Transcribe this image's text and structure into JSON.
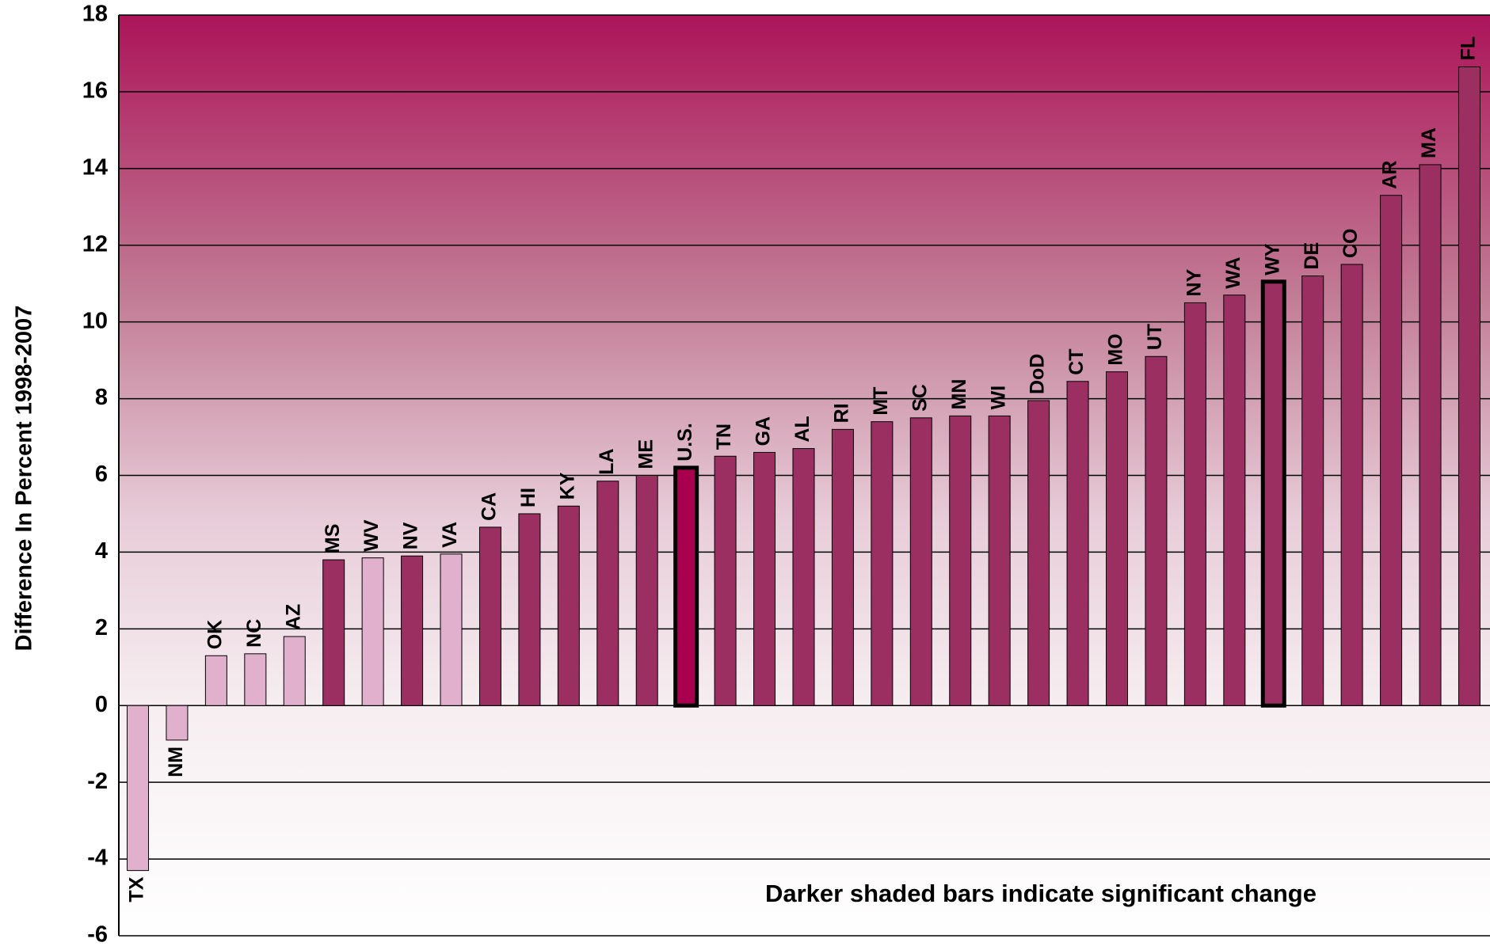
{
  "chart_data": {
    "type": "bar",
    "annotation": "Darker shaded bars indicate significant change",
    "y_label": "Difference In Percent 1998-2007",
    "categories": [
      "TX",
      "NM",
      "OK",
      "NC",
      "AZ",
      "MS",
      "WV",
      "NV",
      "VA",
      "CA",
      "HI",
      "KY",
      "LA",
      "ME",
      "U.S.",
      "TN",
      "GA",
      "AL",
      "RI",
      "MT",
      "SC",
      "MN",
      "WI",
      "DoD",
      "CT",
      "MO",
      "UT",
      "NY",
      "WA",
      "WY",
      "DE",
      "CO",
      "AR",
      "MA",
      "FL"
    ],
    "values": [
      -4.3,
      -0.9,
      1.3,
      1.35,
      1.8,
      3.8,
      3.85,
      3.9,
      3.95,
      4.65,
      5.0,
      5.2,
      5.85,
      6.0,
      6.2,
      6.5,
      6.6,
      6.7,
      7.2,
      7.4,
      7.5,
      7.55,
      7.55,
      7.95,
      8.45,
      8.7,
      9.1,
      10.5,
      10.7,
      11.05,
      11.2,
      11.5,
      13.3,
      14.1,
      16.65
    ],
    "bar_colors": [
      "#e0b0cc",
      "#e0b0cc",
      "#e0b0cc",
      "#e0b0cc",
      "#e0b0cc",
      "#9b2f62",
      "#e0b0cc",
      "#9b2f62",
      "#e0b0cc",
      "#9b2f62",
      "#9b2f62",
      "#9b2f62",
      "#9b2f62",
      "#9b2f62",
      "#a8004f",
      "#9b2f62",
      "#9b2f62",
      "#9b2f62",
      "#9b2f62",
      "#9b2f62",
      "#9b2f62",
      "#9b2f62",
      "#9b2f62",
      "#9b2f62",
      "#9b2f62",
      "#9b2f62",
      "#9b2f62",
      "#9b2f62",
      "#9b2f62",
      "#9b2f62",
      "#9b2f62",
      "#9b2f62",
      "#9b2f62",
      "#9b2f62",
      "#9b2f62"
    ],
    "outlined_categories": [
      "U.S.",
      "WY"
    ],
    "ylim": [
      -6,
      18
    ],
    "yticks": [
      -6,
      -4,
      -2,
      0,
      2,
      4,
      6,
      8,
      10,
      12,
      14,
      16,
      18
    ],
    "grid": true
  }
}
